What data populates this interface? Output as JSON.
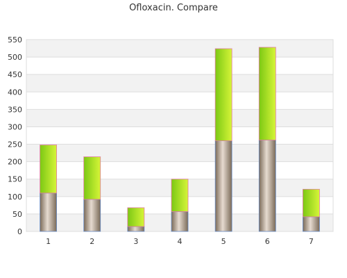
{
  "chart_data": {
    "type": "bar",
    "stacked": true,
    "title": "Ofloxacin. Compare",
    "categories": [
      "1",
      "2",
      "3",
      "4",
      "5",
      "6",
      "7"
    ],
    "series": [
      {
        "values": [
          110,
          92,
          14,
          57,
          260,
          262,
          42
        ]
      },
      {
        "values": [
          138,
          122,
          54,
          93,
          264,
          266,
          79
        ]
      }
    ],
    "ylim": [
      0,
      550
    ],
    "yticks": [
      0,
      50,
      100,
      150,
      200,
      250,
      300,
      350,
      400,
      450,
      500,
      550
    ],
    "grid": true,
    "legend": "none",
    "colors": {
      "lower_dark": "#7a6a58",
      "lower_light": "#e6dbd0",
      "lower_outline": "#6a8ec8",
      "upper_dark": "#7cc814",
      "upper_light": "#d6f538",
      "upper_outline": "#e07aa0",
      "band": "#f2f2f2",
      "gridline": "#dddddd",
      "axis_text": "#333333"
    }
  }
}
